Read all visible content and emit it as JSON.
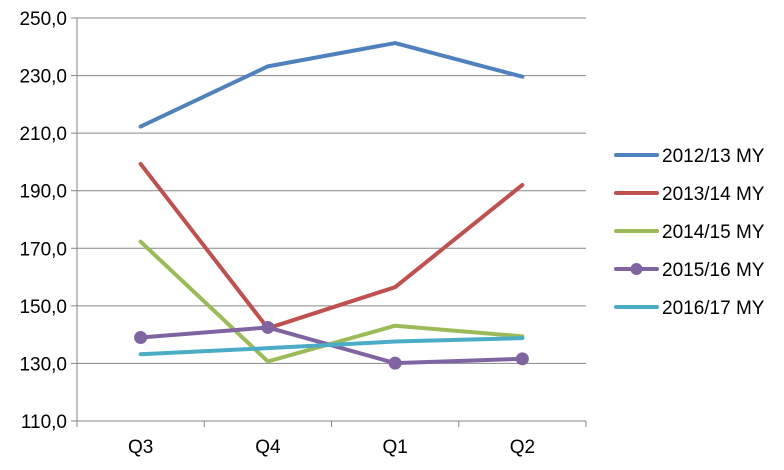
{
  "chart_data": {
    "type": "line",
    "title": "",
    "xlabel": "",
    "ylabel": "",
    "categories": [
      "Q3",
      "Q4",
      "Q1",
      "Q2"
    ],
    "ylim": [
      110,
      250
    ],
    "yticks": [
      "110,0",
      "130,0",
      "150,0",
      "170,0",
      "190,0",
      "210,0",
      "230,0",
      "250,0"
    ],
    "grid": "horizontal",
    "legend_position": "right",
    "series": [
      {
        "name": "2012/13 MY",
        "color": "#4f81bd",
        "marker": "none",
        "values": [
          212.3,
          233.2,
          241.3,
          229.6
        ]
      },
      {
        "name": "2013/14 MY",
        "color": "#c0504d",
        "marker": "none",
        "values": [
          199.3,
          142.2,
          156.5,
          192.0
        ]
      },
      {
        "name": "2014/15 MY",
        "color": "#9bbb59",
        "marker": "none",
        "values": [
          172.3,
          130.7,
          143.1,
          139.4
        ]
      },
      {
        "name": "2015/16 MY",
        "color": "#8064a2",
        "marker": "circle",
        "values": [
          139.0,
          142.5,
          130.1,
          131.6
        ]
      },
      {
        "name": "2016/17 MY",
        "color": "#4bacc6",
        "marker": "none",
        "values": [
          133.2,
          135.3,
          137.6,
          138.8
        ]
      }
    ]
  }
}
